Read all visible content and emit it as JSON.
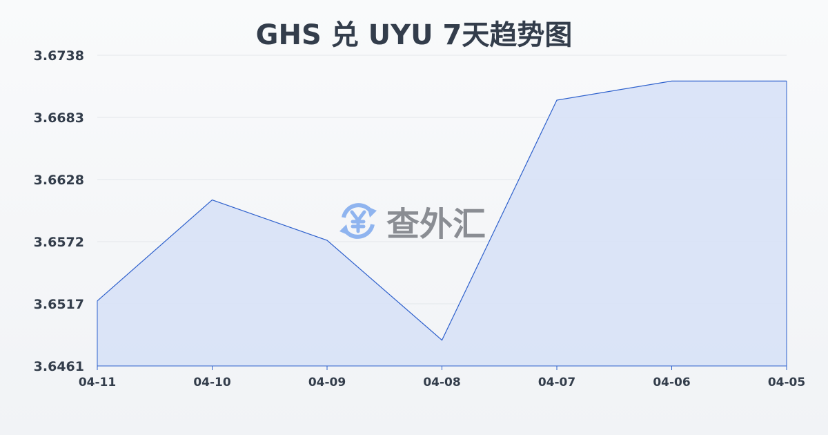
{
  "title": "GHS 兑 UYU 7天趋势图",
  "watermark": {
    "text": "查外汇",
    "icon": "yen-exchange-icon",
    "icon_color": "#8fb4ef"
  },
  "chart_data": {
    "type": "area",
    "title": "GHS 兑 UYU 7天趋势图",
    "categories": [
      "04-11",
      "04-10",
      "04-09",
      "04-08",
      "04-07",
      "04-06",
      "04-05"
    ],
    "values": [
      3.6519,
      3.6609,
      3.6573,
      3.6484,
      3.6698,
      3.6715,
      3.6715
    ],
    "yticks": [
      "3.6738",
      "3.6683",
      "3.6628",
      "3.6572",
      "3.6517",
      "3.6461"
    ],
    "ylim": [
      3.6461,
      3.6738
    ],
    "grid": true,
    "line_color": "#2c5fcc",
    "fill_color": "#d6e1f7"
  }
}
